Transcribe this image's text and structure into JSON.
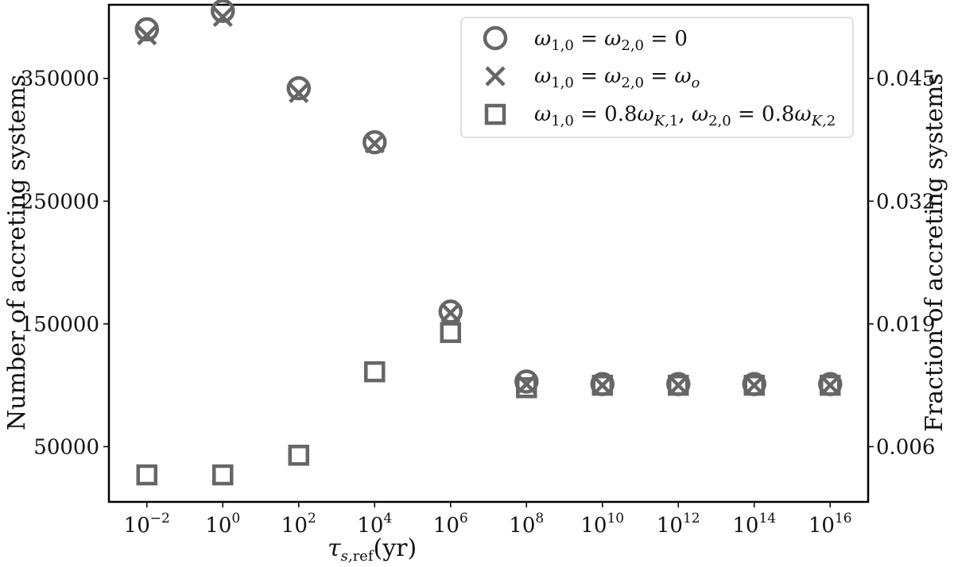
{
  "chart_data": {
    "type": "scatter",
    "xlabel": "τs,ref(yr)",
    "ylabel_left": "Number of accreting systems",
    "ylabel_right": "Fraction of accreting systems",
    "x_scale": "log",
    "x_ticks": [
      {
        "base": "10",
        "exp": "−2"
      },
      {
        "base": "10",
        "exp": "0"
      },
      {
        "base": "10",
        "exp": "2"
      },
      {
        "base": "10",
        "exp": "4"
      },
      {
        "base": "10",
        "exp": "6"
      },
      {
        "base": "10",
        "exp": "8"
      },
      {
        "base": "10",
        "exp": "10"
      },
      {
        "base": "10",
        "exp": "12"
      },
      {
        "base": "10",
        "exp": "14"
      },
      {
        "base": "10",
        "exp": "16"
      }
    ],
    "x_exponents": [
      -2,
      0,
      2,
      4,
      6,
      8,
      10,
      12,
      14,
      16
    ],
    "xlim_exponent": [
      -3,
      17
    ],
    "ylim_left": [
      5000,
      410000
    ],
    "y_ticks_left": [
      "50000",
      "150000",
      "250000",
      "350000"
    ],
    "y_ticks_left_values": [
      50000,
      150000,
      250000,
      350000
    ],
    "y_ticks_right": [
      "0.006",
      "0.019",
      "0.032",
      "0.045"
    ],
    "legend_position": "top-right",
    "grid": false,
    "marker_color": "#666666",
    "series": [
      {
        "name": "ω1,0 = ω2,0 = 0",
        "marker": "circle",
        "x_exponent": [
          -2,
          0,
          2,
          4,
          6,
          8,
          10,
          12,
          14,
          16
        ],
        "values": [
          390000,
          405000,
          342000,
          298000,
          160000,
          103000,
          101000,
          101000,
          101000,
          101000
        ]
      },
      {
        "name": "ω1,0 = ω2,0 = ωo",
        "marker": "cross",
        "x_exponent": [
          -2,
          0,
          2,
          4,
          6,
          8,
          10,
          12,
          14,
          16
        ],
        "values": [
          385000,
          400000,
          338000,
          297000,
          159000,
          101000,
          100000,
          100000,
          100000,
          100000
        ]
      },
      {
        "name": "ω1,0 = 0.8ωK,1, ω2,0 = 0.8ωK,2",
        "marker": "square",
        "x_exponent": [
          -2,
          0,
          2,
          4,
          6,
          8,
          10,
          12,
          14,
          16
        ],
        "values": [
          27000,
          27000,
          43000,
          111000,
          143000,
          98000,
          100000,
          100000,
          100000,
          100000
        ]
      }
    ]
  }
}
